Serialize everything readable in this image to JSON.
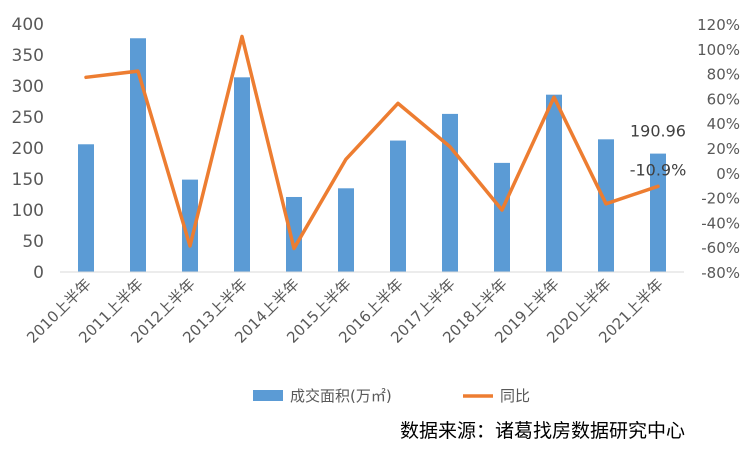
{
  "chart_data": {
    "type": "bar",
    "categories": [
      "2010上半年",
      "2011上半年",
      "2012上半年",
      "2013上半年",
      "2014上半年",
      "2015上半年",
      "2016上半年",
      "2017上半年",
      "2018上半年",
      "2019上半年",
      "2020上半年",
      "2021上半年"
    ],
    "series": [
      {
        "name": "成交面积(万㎡)",
        "type": "bar",
        "axis": "left",
        "color": "#5B9BD5",
        "values": [
          206,
          377,
          149,
          314,
          121,
          135,
          212,
          255,
          176,
          286,
          214,
          190.96
        ]
      },
      {
        "name": "同比",
        "type": "line",
        "axis": "right",
        "color": "#ED7D31",
        "values": [
          77,
          82,
          -59,
          110,
          -61,
          11,
          56,
          21,
          -30,
          61,
          -25,
          -10.9
        ]
      }
    ],
    "y_left": {
      "min": 0,
      "max": 400,
      "step": 50,
      "ticks": [
        "0",
        "50",
        "100",
        "150",
        "200",
        "250",
        "300",
        "350",
        "400"
      ]
    },
    "y_right": {
      "min": -80,
      "max": 120,
      "step": 20,
      "ticks": [
        "-80%",
        "-60%",
        "-40%",
        "-20%",
        "0%",
        "20%",
        "40%",
        "60%",
        "80%",
        "100%",
        "120%"
      ]
    },
    "annotations": [
      {
        "series": 0,
        "index": 11,
        "text": "190.96"
      },
      {
        "series": 1,
        "index": 11,
        "text": "-10.9%"
      }
    ],
    "legend_position": "bottom",
    "grid": false
  },
  "source": "数据来源：诸葛找房数据研究中心"
}
